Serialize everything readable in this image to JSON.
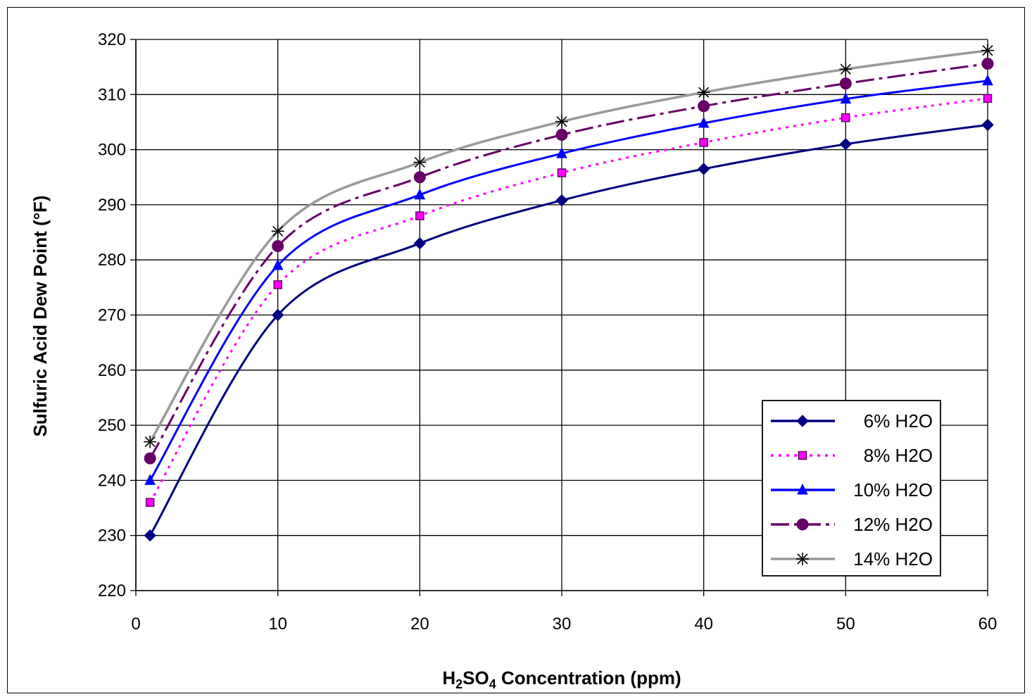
{
  "chart_data": {
    "type": "line",
    "title": "",
    "xlabel": {
      "prefix": "H",
      "sub1": "2",
      "mid": "SO",
      "sub2": "4",
      "suffix": " Concentration (ppm)"
    },
    "ylabel": "Sulfuric Acid Dew Point (°F)",
    "xlim": [
      0,
      60
    ],
    "ylim": [
      220,
      320
    ],
    "xticks": [
      0,
      10,
      20,
      30,
      40,
      50,
      60
    ],
    "yticks": [
      220,
      230,
      240,
      250,
      260,
      270,
      280,
      290,
      300,
      310,
      320
    ],
    "grid": true,
    "legend_position": "bottom-right",
    "x": [
      1,
      10,
      20,
      30,
      40,
      50,
      60
    ],
    "series": [
      {
        "name": "6% H2O",
        "values": [
          230,
          270,
          283,
          290.8,
          296.5,
          301,
          304.5
        ],
        "color": "#000080",
        "dash": "",
        "marker": "diamond"
      },
      {
        "name": "8% H2O",
        "values": [
          236,
          275.5,
          288,
          295.8,
          301.3,
          305.8,
          309.3
        ],
        "color": "#ff00ff",
        "dash": "4,7",
        "marker": "square"
      },
      {
        "name": "10% H2O",
        "values": [
          240,
          279,
          291.8,
          299.3,
          304.8,
          309.2,
          312.5
        ],
        "color": "#0000ff",
        "dash": "",
        "marker": "triangle"
      },
      {
        "name": "12% H2O",
        "values": [
          244,
          282.5,
          295,
          302.7,
          307.9,
          312,
          315.6
        ],
        "color": "#660066",
        "dash": "26,7,5,7",
        "marker": "circle"
      },
      {
        "name": "14% H2O",
        "values": [
          247,
          285.2,
          297.7,
          305.1,
          310.4,
          314.6,
          318
        ],
        "color": "#999999",
        "dash": "",
        "marker": "star"
      }
    ]
  }
}
